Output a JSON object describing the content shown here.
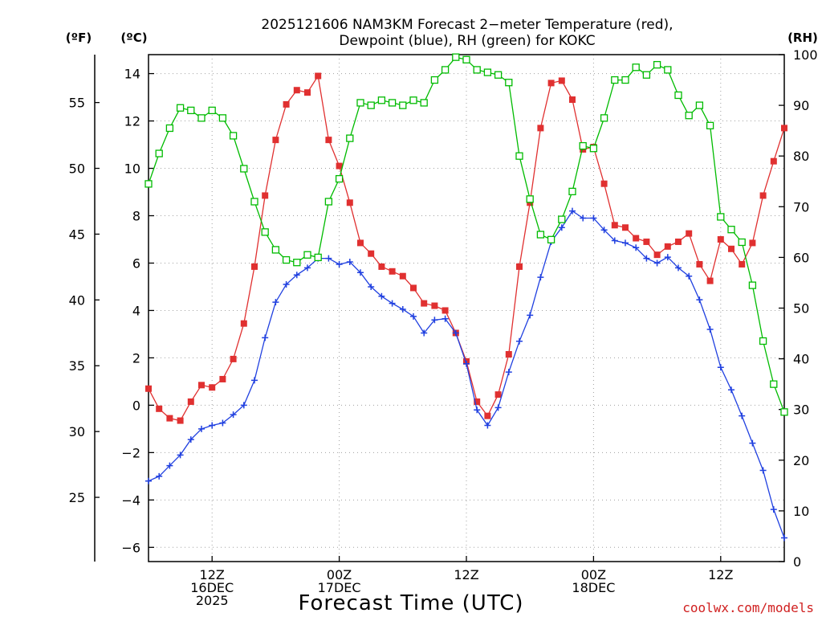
{
  "chart_data": {
    "type": "line",
    "title_line1": "2025121606 NAM3KM Forecast 2−meter Temperature (red),",
    "title_line2": "Dewpoint (blue), RH (green) for KOKC",
    "units": {
      "fahrenheit": "(ºF)",
      "celsius": "(ºC)",
      "rh": "(RH)"
    },
    "xlabel": "Forecast Time (UTC)",
    "credit": "coolwx.com/models",
    "x_ticks": [
      {
        "hour": 6,
        "lines": [
          "12Z",
          "16DEC",
          "2025"
        ]
      },
      {
        "hour": 18,
        "lines": [
          "00Z",
          "17DEC"
        ]
      },
      {
        "hour": 30,
        "lines": [
          "12Z"
        ]
      },
      {
        "hour": 42,
        "lines": [
          "00Z",
          "18DEC"
        ]
      },
      {
        "hour": 54,
        "lines": [
          "12Z"
        ]
      }
    ],
    "xlim": [
      0,
      60
    ],
    "ylim_c": [
      -6.6,
      14.8
    ],
    "ylim_rh": [
      0,
      100
    ],
    "celsius_ticks": [
      14,
      12,
      10,
      8,
      6,
      4,
      2,
      0,
      -2,
      -4,
      -6
    ],
    "celsius_tick_labels": [
      "14",
      "12",
      "10",
      "8",
      "6",
      "4",
      "2",
      "0",
      "−2",
      "−4",
      "−6"
    ],
    "fahrenheit_ticks": [
      55,
      50,
      45,
      40,
      35,
      30,
      25
    ],
    "fahrenheit_tick_labels": [
      "55",
      "50",
      "45",
      "40",
      "35",
      "30",
      "25"
    ],
    "rh_ticks": [
      100,
      90,
      80,
      70,
      60,
      50,
      40,
      30,
      20,
      10,
      0
    ],
    "rh_tick_labels": [
      "100",
      "90",
      "80",
      "70",
      "60",
      "50",
      "40",
      "30",
      "20",
      "10",
      "0"
    ],
    "series": [
      {
        "name": "Temperature",
        "axis": "celsius",
        "color": "#e03030",
        "marker": "filled-square",
        "values": [
          0.7,
          -0.15,
          -0.55,
          -0.65,
          0.15,
          0.85,
          0.75,
          1.1,
          1.95,
          3.45,
          5.85,
          8.85,
          11.2,
          12.7,
          13.3,
          13.2,
          13.9,
          11.2,
          10.1,
          8.55,
          6.85,
          6.4,
          5.85,
          5.65,
          5.45,
          4.95,
          4.3,
          4.2,
          4.0,
          3.05,
          1.85,
          0.15,
          -0.45,
          0.45,
          2.15,
          5.85,
          8.55,
          11.7,
          13.6,
          13.7,
          12.9,
          10.8,
          10.9,
          9.35,
          7.6,
          7.5,
          7.05,
          6.9,
          6.35,
          6.7,
          6.9,
          7.25,
          5.95,
          5.25,
          7.0,
          6.6,
          5.95,
          6.85,
          8.85,
          10.3,
          11.7
        ]
      },
      {
        "name": "Dewpoint",
        "axis": "celsius",
        "color": "#2040e0",
        "marker": "plus",
        "values": [
          -3.2,
          -3.0,
          -2.55,
          -2.1,
          -1.45,
          -1.0,
          -0.85,
          -0.75,
          -0.4,
          0.0,
          1.05,
          2.85,
          4.35,
          5.1,
          5.5,
          5.8,
          6.2,
          6.2,
          5.95,
          6.05,
          5.6,
          5.0,
          4.6,
          4.3,
          4.05,
          3.75,
          3.05,
          3.6,
          3.65,
          3.05,
          1.75,
          -0.2,
          -0.85,
          -0.1,
          1.4,
          2.7,
          3.8,
          5.4,
          6.9,
          7.5,
          8.2,
          7.9,
          7.9,
          7.4,
          6.95,
          6.85,
          6.65,
          6.2,
          6.0,
          6.25,
          5.8,
          5.45,
          4.45,
          3.2,
          1.6,
          0.65,
          -0.45,
          -1.6,
          -2.75,
          -4.4,
          -5.6
        ]
      },
      {
        "name": "RH",
        "axis": "rh",
        "color": "#00bb00",
        "marker": "open-square",
        "values": [
          74.5,
          80.5,
          85.5,
          89.5,
          89,
          87.5,
          89,
          87.5,
          84,
          77.5,
          71,
          65,
          61.5,
          59.5,
          59,
          60.5,
          60,
          71,
          75.5,
          83.5,
          90.5,
          90,
          91,
          90.5,
          90,
          91,
          90.5,
          95,
          97,
          99.5,
          99,
          97,
          96.5,
          96,
          94.5,
          80,
          71.5,
          64.5,
          63.5,
          67.5,
          73,
          82,
          81.5,
          87.5,
          95,
          95,
          97.5,
          96,
          98,
          97,
          92,
          88,
          90,
          86,
          68,
          65.5,
          63,
          54.5,
          43.5,
          35,
          29.5
        ]
      }
    ]
  }
}
